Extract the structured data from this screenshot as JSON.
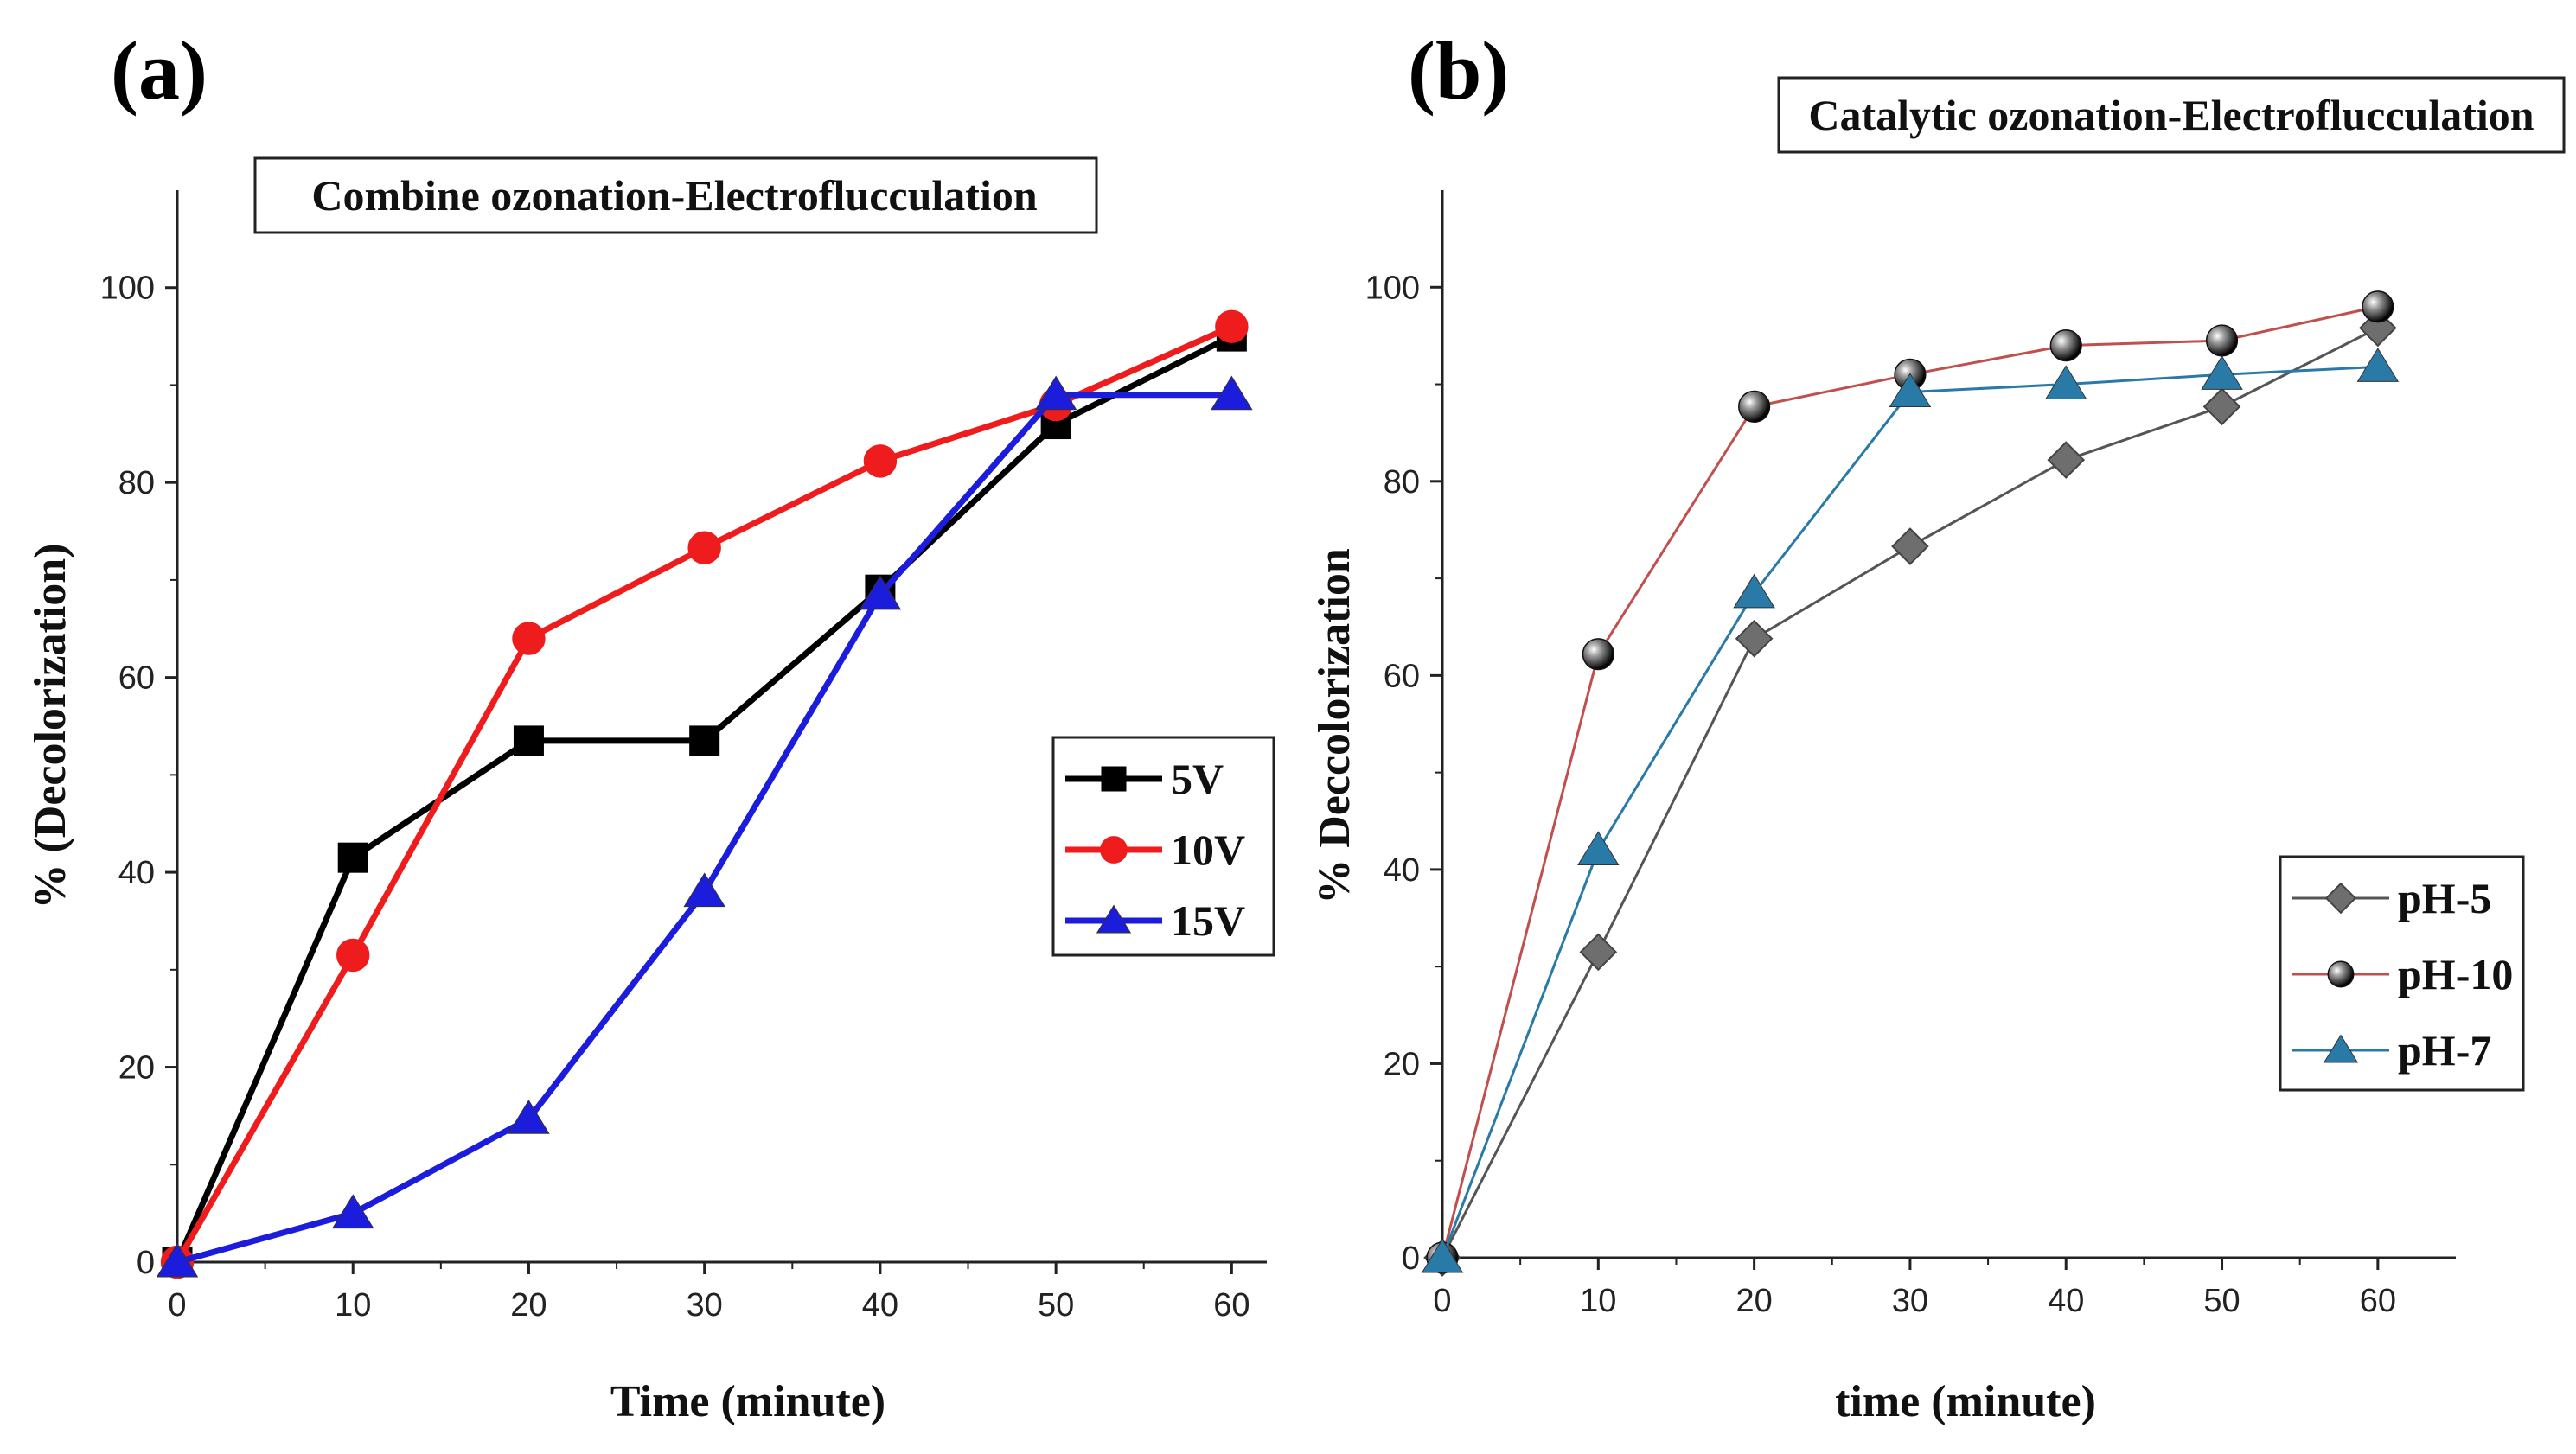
{
  "panels": {
    "a_label": "(a)",
    "b_label": "(b)"
  },
  "chart_data": [
    {
      "type": "line",
      "panel": "(a)",
      "title": "Combine ozonation-Electroflucculation",
      "xlabel": "Time (minute)",
      "ylabel": "% (Decolorization)",
      "xlim": [
        0,
        62
      ],
      "ylim": [
        0,
        110
      ],
      "xticks": [
        0,
        10,
        20,
        30,
        40,
        50,
        60
      ],
      "yticks": [
        0,
        20,
        40,
        60,
        80,
        100
      ],
      "x": [
        0,
        10,
        20,
        30,
        40,
        50,
        60
      ],
      "legend_position": "center-right",
      "series": [
        {
          "name": "5V",
          "color": "#000000",
          "marker": "square",
          "values": [
            0,
            41.5,
            53.5,
            53.5,
            69,
            86,
            95
          ]
        },
        {
          "name": "10V",
          "color": "#ee1c1c",
          "marker": "circle",
          "values": [
            0,
            31.5,
            64,
            73.3,
            82.2,
            88,
            96
          ]
        },
        {
          "name": "15V",
          "color": "#1c1cdc",
          "marker": "triangle",
          "values": [
            0,
            5,
            14.7,
            38,
            68.5,
            89,
            89
          ]
        }
      ]
    },
    {
      "type": "line",
      "panel": "(b)",
      "title": "Catalytic ozonation-Electroflucculation",
      "xlabel": "time (minute)",
      "ylabel": "% Deccolorization",
      "xlim": [
        0,
        65
      ],
      "ylim": [
        0,
        110
      ],
      "xticks": [
        0,
        10,
        20,
        30,
        40,
        50,
        60
      ],
      "yticks": [
        0,
        20,
        40,
        60,
        80,
        100
      ],
      "x": [
        0,
        10,
        20,
        30,
        40,
        50,
        60
      ],
      "legend_position": "bottom-right",
      "series": [
        {
          "name": "pH-5",
          "color": "#555555",
          "marker": "diamond",
          "values": [
            0,
            31.5,
            63.8,
            73.3,
            82.2,
            87.7,
            95.8
          ]
        },
        {
          "name": "pH-10",
          "color": "#c0504d",
          "marker": "sphere",
          "values": [
            0,
            62.2,
            87.7,
            91,
            94,
            94.5,
            98
          ]
        },
        {
          "name": "pH-7",
          "color": "#2a7aa8",
          "marker": "triangle",
          "values": [
            0,
            42,
            68.5,
            89.2,
            90,
            91,
            91.8
          ]
        }
      ]
    }
  ]
}
